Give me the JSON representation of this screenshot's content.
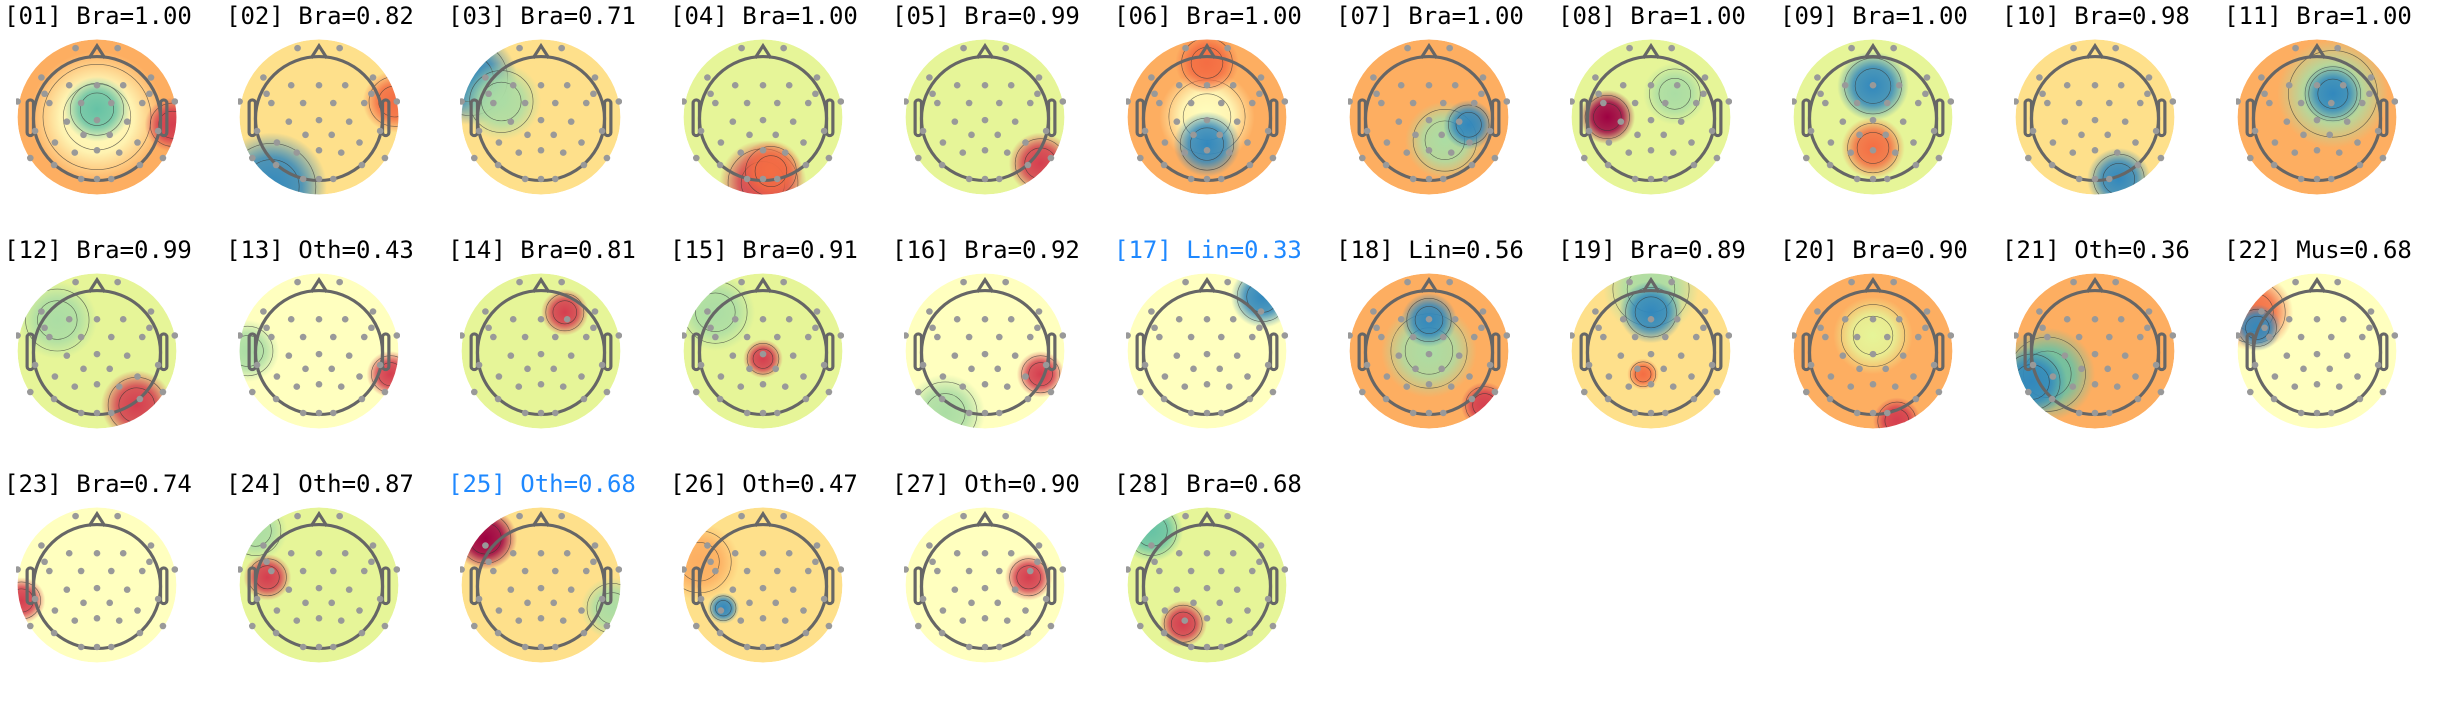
{
  "chart_data": {
    "type": "topomap-grid",
    "colormap": [
      "#3288bd",
      "#66c2a5",
      "#abdda4",
      "#e6f598",
      "#ffffbf",
      "#fee08b",
      "#fdae61",
      "#f46d43",
      "#d53e4f",
      "#9e0142"
    ],
    "highlight_color": "#1e88ff",
    "components": [
      {
        "title": "[01] Bra=1.00",
        "id": "01",
        "label": "Bra",
        "score": 1.0,
        "highlighted": false
      },
      {
        "title": "[02] Bra=0.82",
        "id": "02",
        "label": "Bra",
        "score": 0.82,
        "highlighted": false
      },
      {
        "title": "[03] Bra=0.71",
        "id": "03",
        "label": "Bra",
        "score": 0.71,
        "highlighted": false
      },
      {
        "title": "[04] Bra=1.00",
        "id": "04",
        "label": "Bra",
        "score": 1.0,
        "highlighted": false
      },
      {
        "title": "[05] Bra=0.99",
        "id": "05",
        "label": "Bra",
        "score": 0.99,
        "highlighted": false
      },
      {
        "title": "[06] Bra=1.00",
        "id": "06",
        "label": "Bra",
        "score": 1.0,
        "highlighted": false
      },
      {
        "title": "[07] Bra=1.00",
        "id": "07",
        "label": "Bra",
        "score": 1.0,
        "highlighted": false
      },
      {
        "title": "[08] Bra=1.00",
        "id": "08",
        "label": "Bra",
        "score": 1.0,
        "highlighted": false
      },
      {
        "title": "[09] Bra=1.00",
        "id": "09",
        "label": "Bra",
        "score": 1.0,
        "highlighted": false
      },
      {
        "title": "[10] Bra=0.98",
        "id": "10",
        "label": "Bra",
        "score": 0.98,
        "highlighted": false
      },
      {
        "title": "[11] Bra=1.00",
        "id": "11",
        "label": "Bra",
        "score": 1.0,
        "highlighted": false
      },
      {
        "title": "[12] Bra=0.99",
        "id": "12",
        "label": "Bra",
        "score": 0.99,
        "highlighted": false
      },
      {
        "title": "[13] Oth=0.43",
        "id": "13",
        "label": "Oth",
        "score": 0.43,
        "highlighted": false
      },
      {
        "title": "[14] Bra=0.81",
        "id": "14",
        "label": "Bra",
        "score": 0.81,
        "highlighted": false
      },
      {
        "title": "[15] Bra=0.91",
        "id": "15",
        "label": "Bra",
        "score": 0.91,
        "highlighted": false
      },
      {
        "title": "[16] Bra=0.92",
        "id": "16",
        "label": "Bra",
        "score": 0.92,
        "highlighted": false
      },
      {
        "title": "[17] Lin=0.33",
        "id": "17",
        "label": "Lin",
        "score": 0.33,
        "highlighted": true
      },
      {
        "title": "[18] Lin=0.56",
        "id": "18",
        "label": "Lin",
        "score": 0.56,
        "highlighted": false
      },
      {
        "title": "[19] Bra=0.89",
        "id": "19",
        "label": "Bra",
        "score": 0.89,
        "highlighted": false
      },
      {
        "title": "[20] Bra=0.90",
        "id": "20",
        "label": "Bra",
        "score": 0.9,
        "highlighted": false
      },
      {
        "title": "[21] Oth=0.36",
        "id": "21",
        "label": "Oth",
        "score": 0.36,
        "highlighted": false
      },
      {
        "title": "[22] Mus=0.68",
        "id": "22",
        "label": "Mus",
        "score": 0.68,
        "highlighted": false
      },
      {
        "title": "[23] Bra=0.74",
        "id": "23",
        "label": "Bra",
        "score": 0.74,
        "highlighted": false
      },
      {
        "title": "[24] Oth=0.87",
        "id": "24",
        "label": "Oth",
        "score": 0.87,
        "highlighted": false
      },
      {
        "title": "[25] Oth=0.68",
        "id": "25",
        "label": "Oth",
        "score": 0.68,
        "highlighted": true
      },
      {
        "title": "[26] Oth=0.47",
        "id": "26",
        "label": "Oth",
        "score": 0.47,
        "highlighted": false
      },
      {
        "title": "[27] Oth=0.90",
        "id": "27",
        "label": "Oth",
        "score": 0.9,
        "highlighted": false
      },
      {
        "title": "[28] Bra=0.68",
        "id": "28",
        "label": "Bra",
        "score": 0.68,
        "highlighted": false
      }
    ]
  }
}
